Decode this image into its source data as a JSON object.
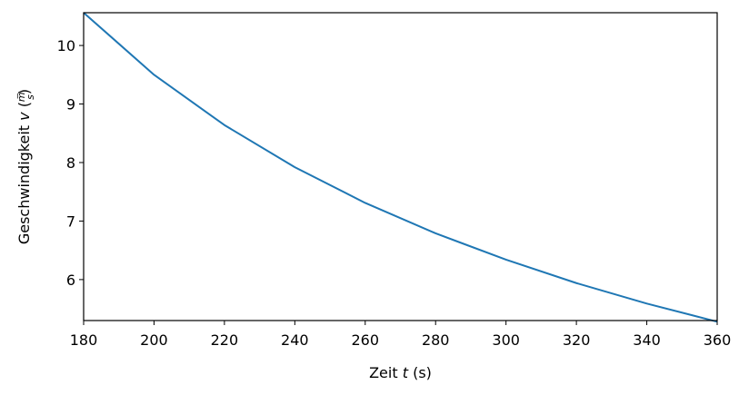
{
  "chart_data": {
    "type": "line",
    "xlabel": {
      "before": "Zeit ",
      "var": "t",
      "after": " (s)"
    },
    "ylabel": {
      "before": "Geschwindigkeit ",
      "var": "v",
      "unit_num": "m",
      "unit_den": "s"
    },
    "xlim": [
      180,
      360
    ],
    "ylim": [
      5.3,
      10.56
    ],
    "xticks": [
      180,
      200,
      220,
      240,
      260,
      280,
      300,
      320,
      340,
      360
    ],
    "yticks": [
      6,
      7,
      8,
      9,
      10
    ],
    "grid": false,
    "color": "#1f77b4",
    "series": [
      {
        "x": [
          180,
          200,
          220,
          240,
          260,
          280,
          300,
          320,
          340,
          360
        ],
        "y": [
          10.56,
          9.5,
          8.64,
          7.92,
          7.31,
          6.79,
          6.34,
          5.94,
          5.59,
          5.28
        ]
      }
    ]
  }
}
